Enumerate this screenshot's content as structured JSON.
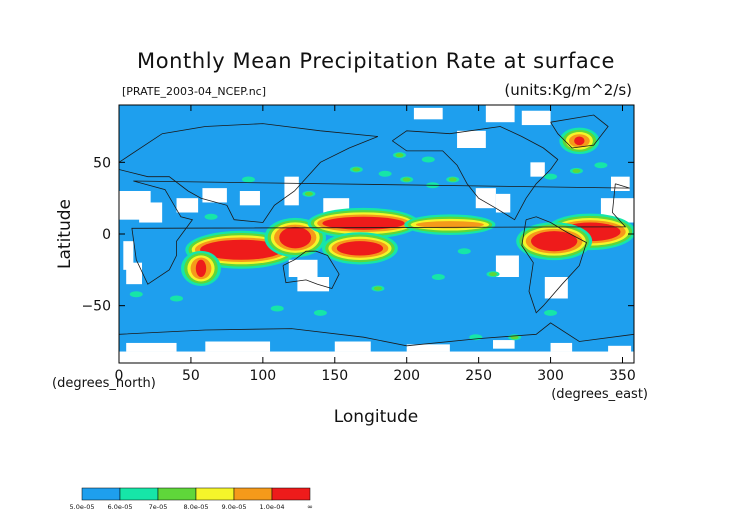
{
  "chart_data": {
    "type": "heatmap",
    "title": "Monthly Mean Precipitation Rate at surface",
    "subtitle_left": "[PRATE_2003-04_NCEP.nc]",
    "subtitle_right": "(units:Kg/m^2/s)",
    "xlabel": "Longitude",
    "ylabel": "Latitude",
    "x_unit": "(degrees_east)",
    "y_unit": "(degrees_north)",
    "xlim": [
      0,
      358
    ],
    "ylim": [
      -90,
      90
    ],
    "x_ticks": [
      0,
      50,
      100,
      150,
      200,
      250,
      300,
      350
    ],
    "x_tick_labels": [
      "0",
      "50",
      "100",
      "150",
      "200",
      "250",
      "300",
      "350"
    ],
    "y_ticks": [
      50,
      0,
      -50
    ],
    "y_tick_labels": [
      "50",
      "0",
      "−50"
    ],
    "colorbar": {
      "bins": [
        {
          "lower": "5.0e-05",
          "color": "#1e9fee"
        },
        {
          "lower": "6.0e-05",
          "color": "#16e6a8"
        },
        {
          "lower": "7e-05",
          "color": "#5fd73a"
        },
        {
          "lower": "8.0e-05",
          "color": "#f5f52a"
        },
        {
          "lower": "9.0e-05",
          "color": "#f59a1a"
        },
        {
          "lower": "1.0e-04",
          "color": "#ee1b1b"
        }
      ],
      "end_label": "∞"
    },
    "below_range_color": "#ffffff",
    "regions": [
      {
        "name": "indian-ocean-south",
        "lon": [
          55,
          115
        ],
        "lat": [
          -18,
          -4
        ],
        "level": 5
      },
      {
        "name": "madagascar-east",
        "lon": [
          52,
          62
        ],
        "lat": [
          -30,
          -18
        ],
        "level": 5
      },
      {
        "name": "maritime-continent",
        "lon": [
          110,
          135
        ],
        "lat": [
          -10,
          5
        ],
        "level": 5
      },
      {
        "name": "west-pacific-itcz",
        "lon": [
          140,
          200
        ],
        "lat": [
          3,
          12
        ],
        "level": 5
      },
      {
        "name": "spcz",
        "lon": [
          150,
          185
        ],
        "lat": [
          -15,
          -5
        ],
        "level": 5
      },
      {
        "name": "atlantic-itcz",
        "lon": [
          305,
          350
        ],
        "lat": [
          -5,
          8
        ],
        "level": 5
      },
      {
        "name": "amazon",
        "lon": [
          285,
          320
        ],
        "lat": [
          -12,
          2
        ],
        "level": 5
      },
      {
        "name": "east-pacific-itcz",
        "lon": [
          205,
          255
        ],
        "lat": [
          4,
          9
        ],
        "level": 4
      },
      {
        "name": "greenland-south",
        "lon": [
          315,
          325
        ],
        "lat": [
          62,
          68
        ],
        "level": 5
      }
    ]
  }
}
